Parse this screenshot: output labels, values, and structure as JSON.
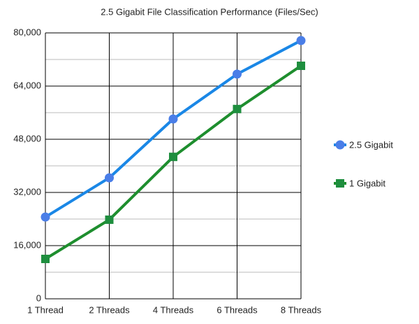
{
  "chart_data": {
    "type": "line",
    "title": "2.5 Gigabit File Classification Performance (Files/Sec)",
    "categories": [
      "1 Thread",
      "2 Threads",
      "4 Threads",
      "6 Threads",
      "8 Threads"
    ],
    "series": [
      {
        "name": "2.5 Gigabit",
        "color": "#1a87e6",
        "marker": "circle",
        "marker_color": "#4a7ee8",
        "values": [
          24600,
          36400,
          54100,
          67600,
          77700
        ]
      },
      {
        "name": "1 Gigabit",
        "color": "#1e8e2e",
        "marker": "square",
        "marker_color": "#1e8e3e",
        "values": [
          12000,
          23800,
          42700,
          57100,
          70100
        ]
      }
    ],
    "ylim": [
      0,
      80000
    ],
    "yticks": [
      0,
      {
        "value": 16000,
        "label": "16,000"
      },
      {
        "value": 32000,
        "label": "32,000"
      },
      {
        "value": 48000,
        "label": "48,000"
      },
      {
        "value": 64000,
        "label": "64,000"
      },
      {
        "value": 80000,
        "label": "80,000"
      }
    ],
    "minor_yticks": [
      8000,
      24000,
      40000,
      56000,
      72000
    ],
    "grid": true,
    "legend": "right"
  }
}
